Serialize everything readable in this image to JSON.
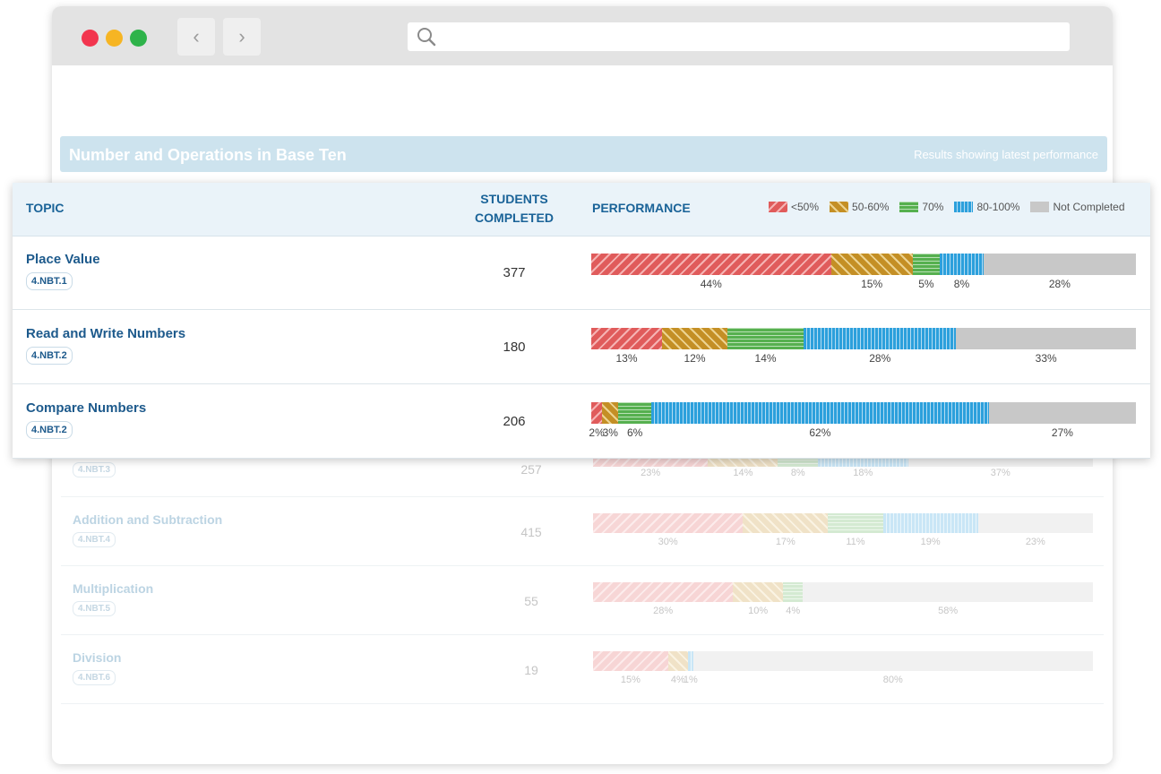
{
  "browser": {
    "back_glyph": "‹",
    "forward_glyph": "›",
    "address_value": ""
  },
  "section": {
    "title": "Number and Operations in Base Ten",
    "note": "Results showing latest performance"
  },
  "table": {
    "col_topic": "TOPIC",
    "col_students": "STUDENTS COMPLETED",
    "col_students_line1": "STUDENTS",
    "col_students_line2": "COMPLETED",
    "col_performance": "PERFORMANCE"
  },
  "legend": [
    {
      "label": "<50%",
      "color": "#e05b5b"
    },
    {
      "label": "50-60%",
      "color": "#c48f25"
    },
    {
      "label": "70%",
      "color": "#56b04f"
    },
    {
      "label": "80-100%",
      "color": "#2ca0dc"
    },
    {
      "label": "Not Completed",
      "color": "#c8c8c8"
    }
  ],
  "rows": [
    {
      "topic": "Place Value",
      "code": "4.NBT.1",
      "students": "377",
      "performance": [
        44,
        15,
        5,
        8,
        28
      ]
    },
    {
      "topic": "Read and Write Numbers",
      "code": "4.NBT.2",
      "students": "180",
      "performance": [
        13,
        12,
        14,
        28,
        33
      ]
    },
    {
      "topic": "Compare Numbers",
      "code": "4.NBT.2",
      "students": "206",
      "performance": [
        2,
        3,
        6,
        62,
        27
      ]
    }
  ],
  "background_rows": [
    {
      "topic": "",
      "code": "4.NBT.3",
      "students": "257",
      "performance": [
        23,
        14,
        8,
        18,
        37
      ]
    },
    {
      "topic": "Addition and Subtraction",
      "code": "4.NBT.4",
      "students": "415",
      "performance": [
        30,
        17,
        11,
        19,
        23
      ]
    },
    {
      "topic": "Multiplication",
      "code": "4.NBT.5",
      "students": "55",
      "performance": [
        28,
        10,
        4,
        0,
        58
      ]
    },
    {
      "topic": "Division",
      "code": "4.NBT.6",
      "students": "19",
      "performance": [
        15,
        4,
        0,
        1,
        80
      ]
    }
  ]
}
